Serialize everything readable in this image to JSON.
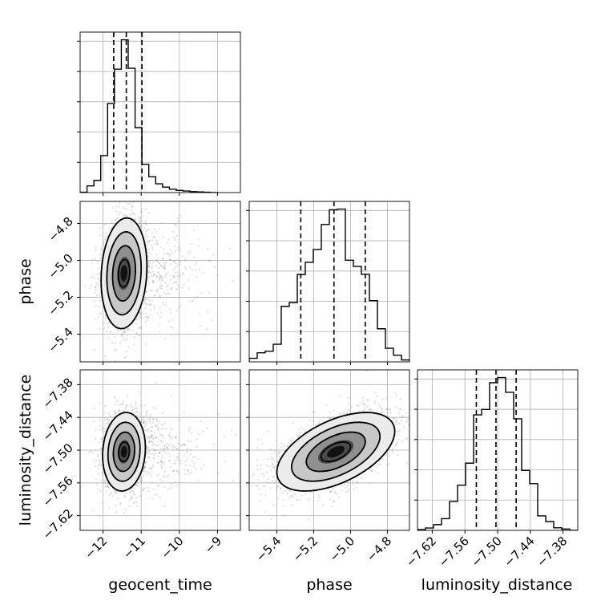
{
  "chart_data": {
    "type": "corner",
    "parameters": [
      "geocent_time",
      "phase",
      "luminosity_distance"
    ],
    "axis_labels": {
      "geocent_time": "geocent_time",
      "phase": "phase",
      "luminosity_distance": "luminosity_distance"
    },
    "ticks": {
      "geocent_time": {
        "values": [
          -12,
          -11,
          -10,
          -9
        ],
        "labels": [
          "−12",
          "−11",
          "−10",
          "−9"
        ],
        "range": [
          -12.6,
          -8.4
        ]
      },
      "phase": {
        "values": [
          -5.4,
          -5.2,
          -5.0,
          -4.8
        ],
        "labels": [
          "−5.4",
          "−5.2",
          "−5.0",
          "−4.8"
        ],
        "range": [
          -5.55,
          -4.68
        ]
      },
      "luminosity_distance": {
        "values": [
          -7.62,
          -7.56,
          -7.5,
          -7.44,
          -7.38
        ],
        "labels": [
          "−7.62",
          "−7.56",
          "−7.50",
          "−7.44",
          "−7.38"
        ],
        "range": [
          -7.647,
          -7.353
        ]
      }
    },
    "quantiles": {
      "geocent_time": [
        -11.72,
        -11.39,
        -10.98
      ],
      "phase": [
        -5.27,
        -5.09,
        -4.92
      ],
      "luminosity_distance": [
        -7.539,
        -7.503,
        -7.466
      ]
    },
    "histograms": {
      "geocent_time": {
        "bin_edges": [
          -12.6,
          -12.42,
          -12.24,
          -12.06,
          -11.88,
          -11.7,
          -11.52,
          -11.34,
          -11.16,
          -10.98,
          -10.8,
          -10.62,
          -10.44,
          -10.26,
          -10.08,
          -9.9,
          -9.72,
          -9.54,
          -9.36,
          -9.18,
          -9.0
        ],
        "counts": [
          1,
          22,
          40,
          122,
          294,
          407,
          504,
          410,
          214,
          93,
          52,
          29,
          18,
          11,
          7,
          5,
          3,
          2,
          1,
          0
        ]
      },
      "phase": {
        "bin_edges": [
          -5.55,
          -5.5065,
          -5.463,
          -5.4195,
          -5.376,
          -5.3325,
          -5.289,
          -5.2455,
          -5.202,
          -5.1585,
          -5.115,
          -5.0715,
          -5.028,
          -4.9845,
          -4.941,
          -4.8975,
          -4.854,
          -4.8105,
          -4.767,
          -4.7235,
          -4.68
        ],
        "counts": [
          15,
          38,
          45,
          74,
          233,
          249,
          367,
          418,
          472,
          577,
          639,
          642,
          427,
          401,
          368,
          257,
          139,
          57,
          28,
          8
        ]
      },
      "luminosity_distance": {
        "bin_edges": [
          -7.647,
          -7.6323,
          -7.6176,
          -7.6029,
          -7.5882,
          -7.5735,
          -7.5588,
          -7.5441,
          -7.5294,
          -7.5147,
          -7.5,
          -7.4853,
          -7.4706,
          -7.4559,
          -7.4412,
          -7.4265,
          -7.4118,
          -7.3971,
          -7.3824,
          -7.3677,
          -7.353
        ],
        "counts": [
          3,
          9,
          22,
          45,
          111,
          174,
          259,
          445,
          466,
          569,
          589,
          532,
          430,
          231,
          180,
          56,
          34,
          10,
          5,
          0
        ]
      }
    },
    "pairs": [
      {
        "x": "geocent_time",
        "y": "phase",
        "center": [
          -11.45,
          -5.07
        ],
        "sigma": [
          0.3,
          0.15
        ],
        "corr": 0.12,
        "tail": true
      },
      {
        "x": "geocent_time",
        "y": "luminosity_distance",
        "center": [
          -11.45,
          -7.503
        ],
        "sigma": [
          0.28,
          0.036
        ],
        "corr": 0.1,
        "tail": true
      },
      {
        "x": "phase",
        "y": "luminosity_distance",
        "center": [
          -5.08,
          -7.503
        ],
        "sigma": [
          0.16,
          0.036
        ],
        "corr": 0.52,
        "tail": false
      }
    ],
    "contour_levels": [
      "0.5σ",
      "1σ",
      "1.5σ",
      "2σ"
    ],
    "grid": true
  },
  "style": {
    "hist_color": "#000000",
    "point_color": "#8a8a8a",
    "grid_color": "#b0b0b0",
    "contour_color": "#000000"
  }
}
